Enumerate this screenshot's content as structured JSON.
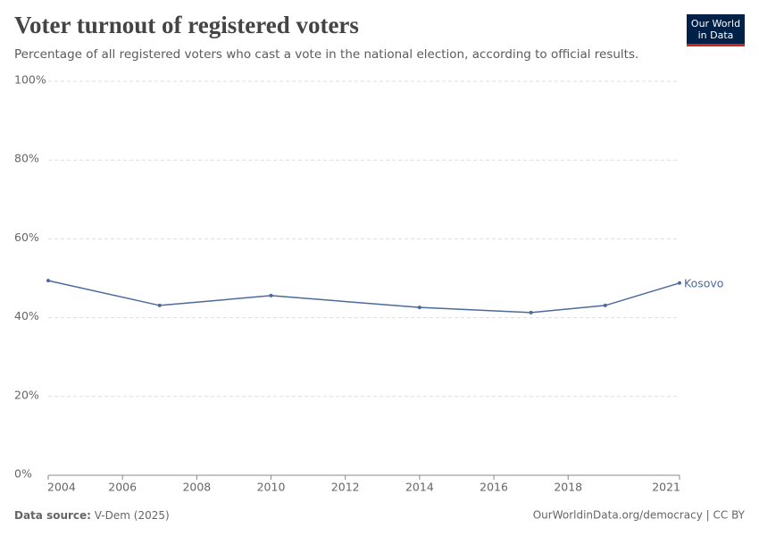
{
  "chart_data": {
    "type": "line",
    "title": "Voter turnout of registered voters",
    "subtitle": "Percentage of all registered voters who cast a vote in the national election, according to official results.",
    "x": [
      2004,
      2007,
      2010,
      2014,
      2017,
      2019,
      2021
    ],
    "series": [
      {
        "name": "Kosovo",
        "color": "#4c6a9c",
        "values": [
          49.4,
          43.1,
          45.6,
          42.6,
          41.3,
          43.1,
          48.8
        ]
      }
    ],
    "xlim": [
      2004,
      2021
    ],
    "xticks": [
      2004,
      2006,
      2008,
      2010,
      2012,
      2014,
      2016,
      2018,
      2021
    ],
    "ylim": [
      0,
      100
    ],
    "yticks": [
      {
        "value": 0,
        "label": "0%"
      },
      {
        "value": 20,
        "label": "20%"
      },
      {
        "value": 40,
        "label": "40%"
      },
      {
        "value": 60,
        "label": "60%"
      },
      {
        "value": 80,
        "label": "80%"
      },
      {
        "value": 100,
        "label": "100%"
      }
    ],
    "grid": true,
    "source_label": "Data source:",
    "source": "V-Dem (2025)",
    "footer_right": "OurWorldinData.org/democracy | CC BY"
  },
  "logo": [
    "Our World",
    "in Data"
  ]
}
